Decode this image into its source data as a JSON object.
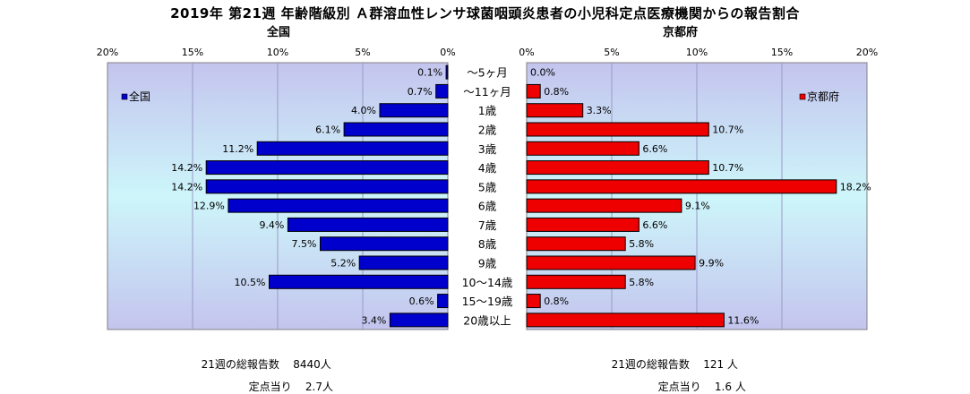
{
  "title": "2019年 第21週 年齢階級別 Ａ群溶血性レンサ球菌咽頭炎患者の小児科定点医療機関からの報告割合",
  "chart_data": {
    "type": "bar",
    "orientation": "horizontal-butterfly",
    "categories": [
      "～5ヶ月",
      "～11ヶ月",
      "1歳",
      "2歳",
      "3歳",
      "4歳",
      "5歳",
      "6歳",
      "7歳",
      "8歳",
      "9歳",
      "10～14歳",
      "15～19歳",
      "20歳以上"
    ],
    "ticks": [
      "20%",
      "15%",
      "10%",
      "5%",
      "0%"
    ],
    "ticks_right": [
      "0%",
      "5%",
      "10%",
      "15%",
      "20%"
    ],
    "xlim": [
      0,
      20
    ],
    "series": [
      {
        "name": "全国",
        "panel_title": "全国",
        "legend_label": "全国",
        "color": "#0000cc",
        "values": [
          0.1,
          0.7,
          4.0,
          6.1,
          11.2,
          14.2,
          14.2,
          12.9,
          9.4,
          7.5,
          5.2,
          10.5,
          0.6,
          3.4
        ],
        "labels": [
          "0.1%",
          "0.7%",
          "4.0%",
          "6.1%",
          "11.2%",
          "14.2%",
          "14.2%",
          "12.9%",
          "9.4%",
          "7.5%",
          "5.2%",
          "10.5%",
          "0.6%",
          "3.4%"
        ]
      },
      {
        "name": "京都府",
        "panel_title": "京都府",
        "legend_label": "京都府",
        "color": "#ee0000",
        "values": [
          0.0,
          0.8,
          3.3,
          10.7,
          6.6,
          10.7,
          18.2,
          9.1,
          6.6,
          5.8,
          9.9,
          5.8,
          0.8,
          11.6
        ],
        "labels": [
          "0.0%",
          "0.8%",
          "3.3%",
          "10.7%",
          "6.6%",
          "10.7%",
          "18.2%",
          "9.1%",
          "6.6%",
          "5.8%",
          "9.9%",
          "5.8%",
          "0.8%",
          "11.6%"
        ]
      }
    ],
    "grid": true,
    "legend_left": "left",
    "legend_right": "right"
  },
  "footer": {
    "national_total_label": "21週の総報告数",
    "national_total_value": "8440人",
    "national_per_label": "定点当り",
    "national_per_value": "2.7人",
    "kyoto_total_label": "21週の総報告数",
    "kyoto_total_value": "121 人",
    "kyoto_per_label": "定点当り",
    "kyoto_per_value": "1.6 人"
  }
}
